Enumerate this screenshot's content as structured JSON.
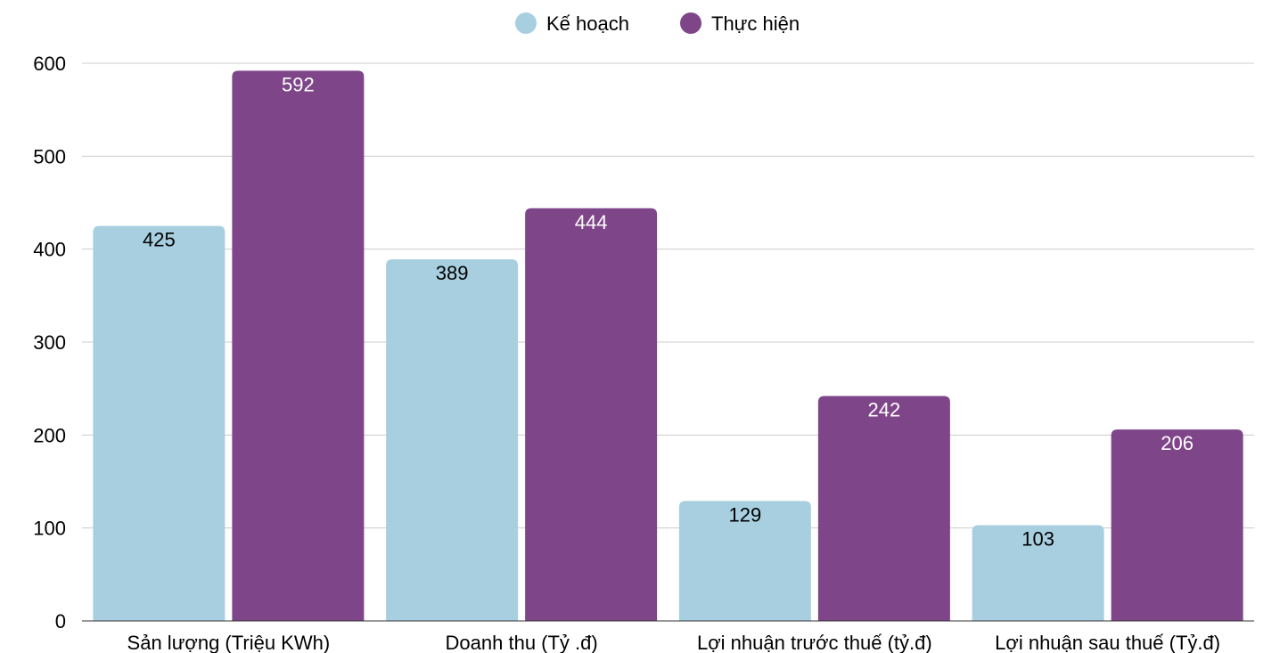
{
  "chart_data": {
    "type": "bar",
    "categories": [
      "Sản lượng (Triệu KWh)",
      "Doanh thu (Tỷ .đ)",
      "Lợi nhuận trước thuế (tỷ.đ)",
      "Lợi nhuận sau thuế (Tỷ.đ)"
    ],
    "series": [
      {
        "name": "Kế hoạch",
        "values": [
          425,
          389,
          129,
          103
        ],
        "color": "#a8cfe0",
        "label_color": "#000000"
      },
      {
        "name": "Thực hiện",
        "values": [
          592,
          444,
          242,
          206
        ],
        "color": "#7e4589",
        "label_color": "#ffffff"
      }
    ],
    "ylim": [
      0,
      600
    ],
    "yticks": [
      0,
      100,
      200,
      300,
      400,
      500,
      600
    ],
    "grid": true,
    "legend_position": "top-center"
  }
}
